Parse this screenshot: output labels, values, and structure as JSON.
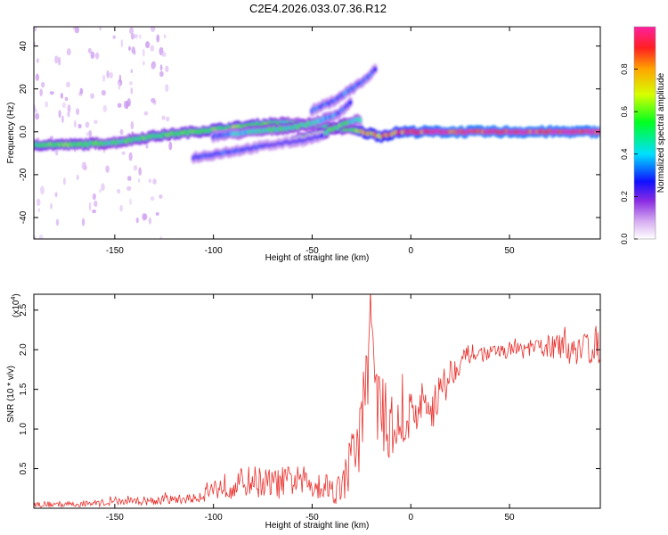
{
  "title": "C2E4.2026.033.07.36.R12",
  "chart_data": [
    {
      "type": "heatmap",
      "name": "spectrogram",
      "xlabel": "Height of straight line (km)",
      "ylabel": "Frequency (Hz)",
      "xlim": [
        -191,
        96
      ],
      "ylim": [
        -50,
        49
      ],
      "xticks": [
        -150,
        -100,
        -50,
        0,
        50
      ],
      "yticks": [
        -40,
        -20,
        0,
        20,
        40
      ],
      "colorbar": {
        "label": "Normalized spectral amplitude",
        "range": [
          0.0,
          1.0
        ],
        "ticks": [
          0.0,
          0.2,
          0.4,
          0.6,
          0.8
        ]
      },
      "traces": [
        {
          "name": "main-trace",
          "x": [
            -191,
            -170,
            -150,
            -130,
            -110,
            -90,
            -70,
            -60,
            -50,
            -40,
            -30,
            -25,
            -15,
            -5,
            0,
            20,
            50,
            96
          ],
          "y": [
            -6,
            -6,
            -5,
            -2,
            0,
            2,
            4,
            4,
            3,
            2,
            1,
            0,
            -2,
            0,
            0,
            0,
            0,
            0
          ],
          "amp": [
            0.55,
            0.55,
            0.5,
            0.55,
            0.55,
            0.6,
            0.55,
            0.45,
            0.4,
            0.55,
            0.5,
            0.75,
            0.75,
            0.85,
            0.9,
            0.95,
            0.95,
            0.95
          ]
        },
        {
          "name": "rising-track-upper",
          "x": [
            -100,
            -80,
            -60,
            -50,
            -40,
            -35,
            -30
          ],
          "y": [
            -2,
            0,
            2,
            4,
            7,
            10,
            14
          ],
          "amp": [
            0.3,
            0.45,
            0.5,
            0.45,
            0.35,
            0.3,
            0.3
          ]
        },
        {
          "name": "rising-track-middle",
          "x": [
            -60,
            -50,
            -45,
            -40,
            -35,
            -30,
            -25
          ],
          "y": [
            -4,
            -2,
            -1,
            1,
            3,
            5,
            6
          ],
          "amp": [
            0.45,
            0.55,
            0.55,
            0.5,
            0.55,
            0.45,
            0.4
          ]
        },
        {
          "name": "rising-track-faint",
          "x": [
            -110,
            -90,
            -70,
            -55,
            -45
          ],
          "y": [
            -12,
            -9,
            -6,
            -4,
            -2
          ],
          "amp": [
            0.3,
            0.3,
            0.25,
            0.25,
            0.25
          ]
        },
        {
          "name": "upper-arc",
          "x": [
            -50,
            -40,
            -30,
            -25,
            -20,
            -17
          ],
          "y": [
            10,
            14,
            20,
            23,
            27,
            30
          ],
          "amp": [
            0.3,
            0.3,
            0.35,
            0.3,
            0.3,
            0.25
          ]
        }
      ]
    },
    {
      "type": "line",
      "name": "snr",
      "xlabel": "Height of straight line (km)",
      "ylabel": "SNR (10 * v/v)",
      "exponent_label": "(x10",
      "exponent_power": "4",
      "exponent_close": ")",
      "xlim": [
        -191,
        96
      ],
      "ylim": [
        0,
        2.7
      ],
      "xticks": [
        -150,
        -100,
        -50,
        0,
        50
      ],
      "yticks": [
        0.5,
        1.0,
        1.5,
        2.0,
        2.5
      ],
      "color": "#e8322e",
      "x": [
        -191,
        -170,
        -150,
        -130,
        -110,
        -100,
        -90,
        -80,
        -70,
        -60,
        -50,
        -45,
        -40,
        -35,
        -30,
        -25,
        -22,
        -20,
        -18,
        -15,
        -10,
        -5,
        0,
        5,
        10,
        15,
        20,
        25,
        30,
        40,
        50,
        60,
        70,
        80,
        90,
        96
      ],
      "values": [
        0.05,
        0.05,
        0.08,
        0.1,
        0.12,
        0.25,
        0.3,
        0.35,
        0.3,
        0.35,
        0.32,
        0.3,
        0.25,
        0.25,
        0.6,
        1.0,
        1.8,
        2.55,
        1.5,
        1.2,
        1.0,
        1.05,
        1.2,
        1.25,
        1.3,
        1.45,
        1.7,
        1.85,
        1.95,
        1.95,
        2.0,
        2.0,
        2.05,
        2.0,
        2.05,
        2.05
      ],
      "noise": [
        0.04,
        0.04,
        0.05,
        0.06,
        0.06,
        0.15,
        0.18,
        0.2,
        0.2,
        0.2,
        0.2,
        0.2,
        0.2,
        0.2,
        0.4,
        0.5,
        0.6,
        0.4,
        0.55,
        0.5,
        0.45,
        0.4,
        0.35,
        0.35,
        0.35,
        0.3,
        0.22,
        0.15,
        0.12,
        0.1,
        0.1,
        0.12,
        0.15,
        0.2,
        0.25,
        0.25
      ]
    }
  ]
}
